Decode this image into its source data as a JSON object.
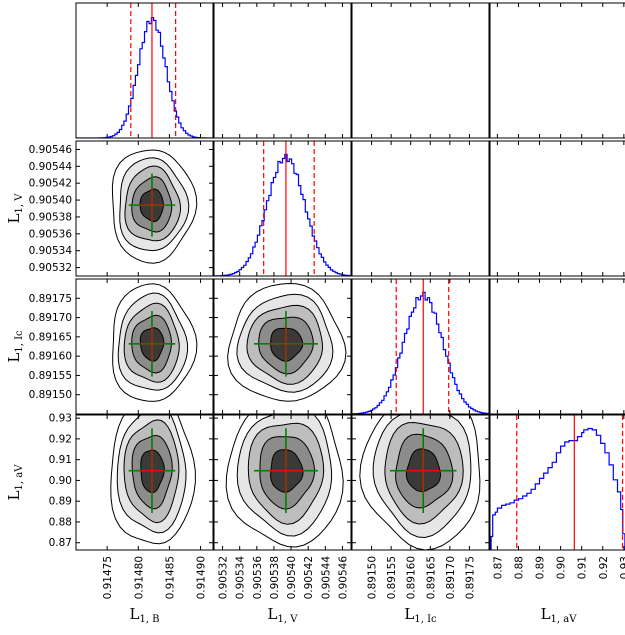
{
  "chart_data": {
    "type": "corner",
    "parameters": [
      {
        "key": "L_B",
        "label": "L",
        "sub": "1, B",
        "best": 0.914822,
        "sigma": 2.2e-05
      },
      {
        "key": "L_V",
        "label": "L",
        "sub": "1, V",
        "best": 0.905394,
        "sigma": 2.2e-05
      },
      {
        "key": "L_Ic",
        "label": "L",
        "sub": "1, Ic",
        "best": 0.891632,
        "sigma": 5e-05
      },
      {
        "key": "L_aV",
        "label": "L",
        "sub": "1, aV",
        "best": 0.9047,
        "sigma": 0.012
      }
    ],
    "ranges": [
      [
        0.9147,
        0.91492
      ],
      [
        0.90531,
        0.90547
      ],
      [
        0.89145,
        0.8918
      ],
      [
        0.8665,
        0.9315
      ]
    ],
    "ticks": [
      [
        0.91475,
        0.9148,
        0.91485,
        0.9149
      ],
      [
        0.90532,
        0.90534,
        0.90536,
        0.90538,
        0.9054,
        0.90542,
        0.90544,
        0.90546
      ],
      [
        0.8915,
        0.89155,
        0.8916,
        0.89165,
        0.8917,
        0.89175
      ],
      [
        0.87,
        0.88,
        0.89,
        0.9,
        0.91,
        0.92,
        0.93
      ]
    ],
    "tick_labels": [
      [
        "0.91475",
        "0.91480",
        "0.91485",
        "0.91490"
      ],
      [
        "0.90532",
        "0.90534",
        "0.90536",
        "0.90538",
        "0.90540",
        "0.90542",
        "0.90544",
        "0.90546"
      ],
      [
        "0.89150",
        "0.89155",
        "0.89160",
        "0.89165",
        "0.89170",
        "0.89175"
      ],
      [
        "0.87",
        "0.88",
        "0.89",
        "0.90",
        "0.91",
        "0.92",
        "0.93"
      ]
    ],
    "histograms": [
      {
        "median": 0.914822,
        "lower": 0.914788,
        "upper": 0.91486
      },
      {
        "median": 0.905394,
        "lower": 0.905368,
        "upper": 0.905427
      },
      {
        "median": 0.891632,
        "lower": 0.891563,
        "upper": 0.891697
      },
      {
        "median": 0.9065,
        "lower": 0.8792,
        "upper": 0.9294,
        "steps": [
          [
            0.867,
            0.1
          ],
          [
            0.8678,
            0.26
          ],
          [
            0.869,
            0.28
          ],
          [
            0.87,
            0.31
          ],
          [
            0.872,
            0.33
          ],
          [
            0.874,
            0.34
          ],
          [
            0.876,
            0.35
          ],
          [
            0.878,
            0.37
          ],
          [
            0.88,
            0.38
          ],
          [
            0.882,
            0.4
          ],
          [
            0.884,
            0.42
          ],
          [
            0.886,
            0.45
          ],
          [
            0.888,
            0.49
          ],
          [
            0.89,
            0.53
          ],
          [
            0.892,
            0.57
          ],
          [
            0.894,
            0.61
          ],
          [
            0.896,
            0.65
          ],
          [
            0.898,
            0.72
          ],
          [
            0.9,
            0.77
          ],
          [
            0.902,
            0.8
          ],
          [
            0.904,
            0.81
          ],
          [
            0.906,
            0.81
          ],
          [
            0.908,
            0.84
          ],
          [
            0.91,
            0.87
          ],
          [
            0.911,
            0.89
          ],
          [
            0.913,
            0.9
          ],
          [
            0.915,
            0.89
          ],
          [
            0.917,
            0.85
          ],
          [
            0.919,
            0.79
          ],
          [
            0.921,
            0.72
          ],
          [
            0.923,
            0.63
          ],
          [
            0.925,
            0.52
          ],
          [
            0.927,
            0.43
          ],
          [
            0.9285,
            0.3
          ],
          [
            0.9295,
            0.12
          ],
          [
            0.9305,
            0.0
          ]
        ]
      }
    ],
    "axis_labels": {
      "x": [
        {
          "main": "L",
          "sub": "1, B"
        },
        {
          "main": "L",
          "sub": "1, V"
        },
        {
          "main": "L",
          "sub": "1, Ic"
        },
        {
          "main": "L",
          "sub": "1, aV"
        }
      ],
      "y": [
        {
          "main": "L",
          "sub": "1, V"
        },
        {
          "main": "L",
          "sub": "1, Ic"
        },
        {
          "main": "L",
          "sub": "1, aV"
        }
      ]
    },
    "grid": false,
    "colors": {
      "histogram": "#0000ff",
      "median_line": "#ff0000",
      "interval_line": "#ff0000",
      "errorbar": "#008000",
      "contour_fills": [
        "#ffffff",
        "#e6e6e6",
        "#bdbdbd",
        "#8c8c8c",
        "#3a3a3a"
      ],
      "contour_line": "#000000"
    }
  }
}
